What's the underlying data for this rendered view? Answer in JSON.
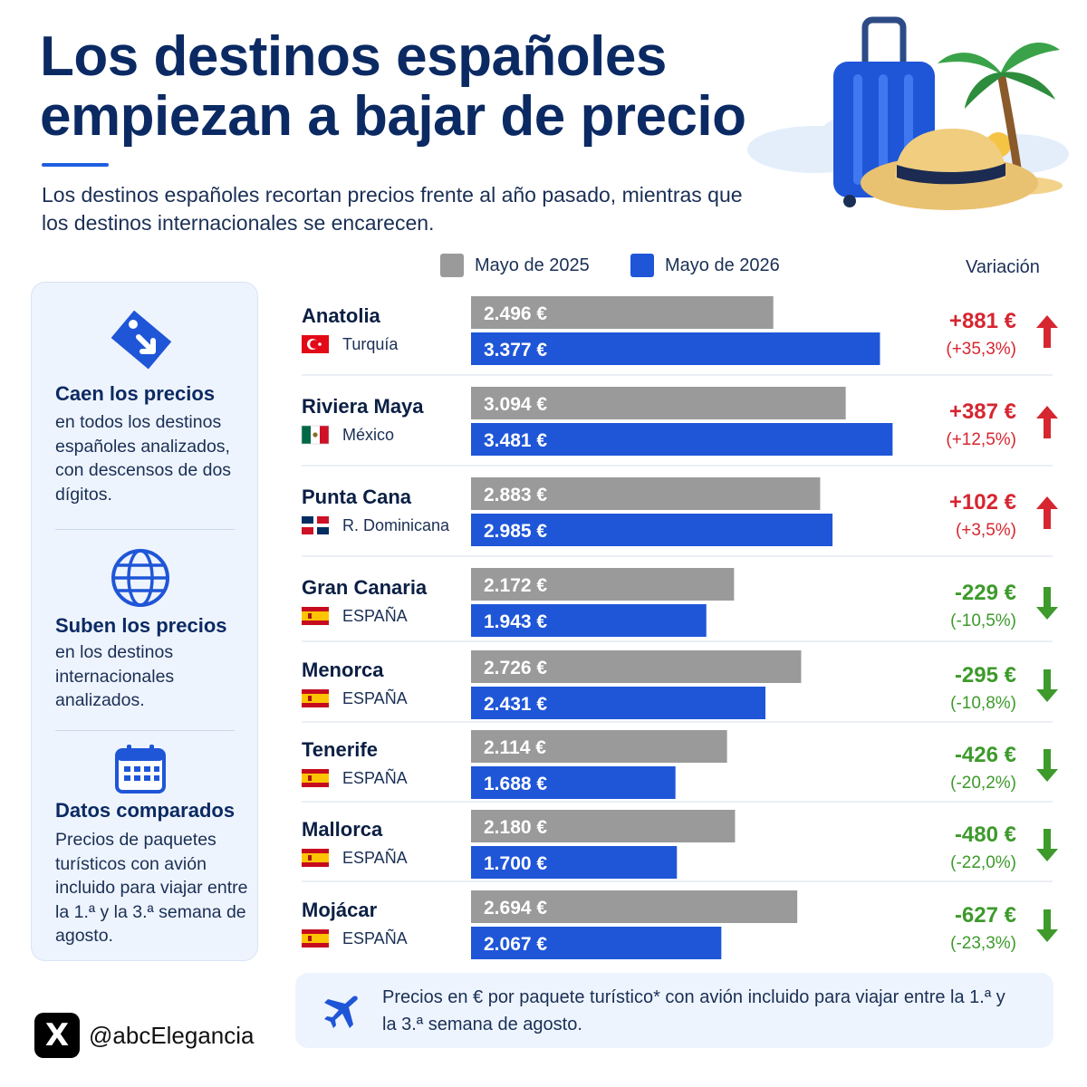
{
  "title": "Los destinos españoles empiezan a bajar de precio",
  "subtitle": "Los destinos españoles recortan precios frente al año pasado, mientras que los destinos internacionales se encarecen.",
  "legend": {
    "series_2025": "Mayo de 2025",
    "series_2026": "Mayo de 2026",
    "variation": "Variación"
  },
  "colors": {
    "bar_2025": "#9a9a9a",
    "bar_2026": "#1f56d8",
    "increase": "#d62630",
    "decrease": "#3d9a2b",
    "title": "#0b2a63",
    "accent": "#1f5fe0"
  },
  "panel": [
    {
      "icon": "price-tag-down-icon",
      "title": "Caen los precios",
      "text": "en todos los destinos españoles analizados, con descensos de dos dígitos."
    },
    {
      "icon": "globe-icon",
      "title": "Suben los precios",
      "text": "en los destinos internacionales analizados."
    },
    {
      "icon": "calendar-icon",
      "title": "Datos comparados",
      "text": "Precios de paquetes turísticos con avión incluido para viajar entre la 1.ª y la 3.ª semana de agosto."
    }
  ],
  "footnote": "Precios en € por paquete turístico* con avión incluido para viajar entre la 1.ª y la 3.ª semana de agosto.",
  "brand": {
    "logo": "X",
    "handle": "@abcElegancia"
  },
  "chart_data": {
    "type": "bar",
    "orientation": "horizontal",
    "categories": [
      "Anatolia",
      "Riviera Maya",
      "Punta Cana",
      "Gran Canaria",
      "Menorca",
      "Tenerife",
      "Mallorca",
      "Mojácar"
    ],
    "countries": [
      "Turquía",
      "México",
      "R. Dominicana",
      "ESPAÑA",
      "ESPAÑA",
      "ESPAÑA",
      "ESPAÑA",
      "ESPAÑA"
    ],
    "flags": [
      "turkey-flag",
      "mexico-flag",
      "dominican-flag",
      "spain-flag",
      "spain-flag",
      "spain-flag",
      "spain-flag",
      "spain-flag"
    ],
    "series": [
      {
        "name": "Mayo de 2025",
        "values": [
          2496,
          3094,
          2883,
          2172,
          2726,
          2114,
          2180,
          2694
        ],
        "labels": [
          "2.496 €",
          "3.094 €",
          "2.883 €",
          "2.172 €",
          "2.726 €",
          "2.114 €",
          "2.180 €",
          "2.694 €"
        ]
      },
      {
        "name": "Mayo de 2026",
        "values": [
          3377,
          3481,
          2985,
          1943,
          2431,
          1688,
          1700,
          2067
        ],
        "labels": [
          "3.377 €",
          "3.481 €",
          "2.985 €",
          "1.943 €",
          "2.431 €",
          "1.688 €",
          "1.700 €",
          "2.067 €"
        ]
      }
    ],
    "variation": {
      "values": [
        881,
        387,
        102,
        -229,
        -295,
        -426,
        -480,
        -627
      ],
      "labels": [
        "+881 €",
        "+387 €",
        "+102 €",
        "-229 €",
        "-295 €",
        "-426 €",
        "-480 €",
        "-627 €"
      ],
      "percent": [
        "(+35,3%)",
        "(+12,5%)",
        "(+3,5%)",
        "(-10,5%)",
        "(-10,8%)",
        "(-20,2%)",
        "(-22,0%)",
        "(-23,3%)"
      ]
    },
    "xlim": [
      0,
      3740
    ],
    "grid": false,
    "legend_position": "top"
  }
}
